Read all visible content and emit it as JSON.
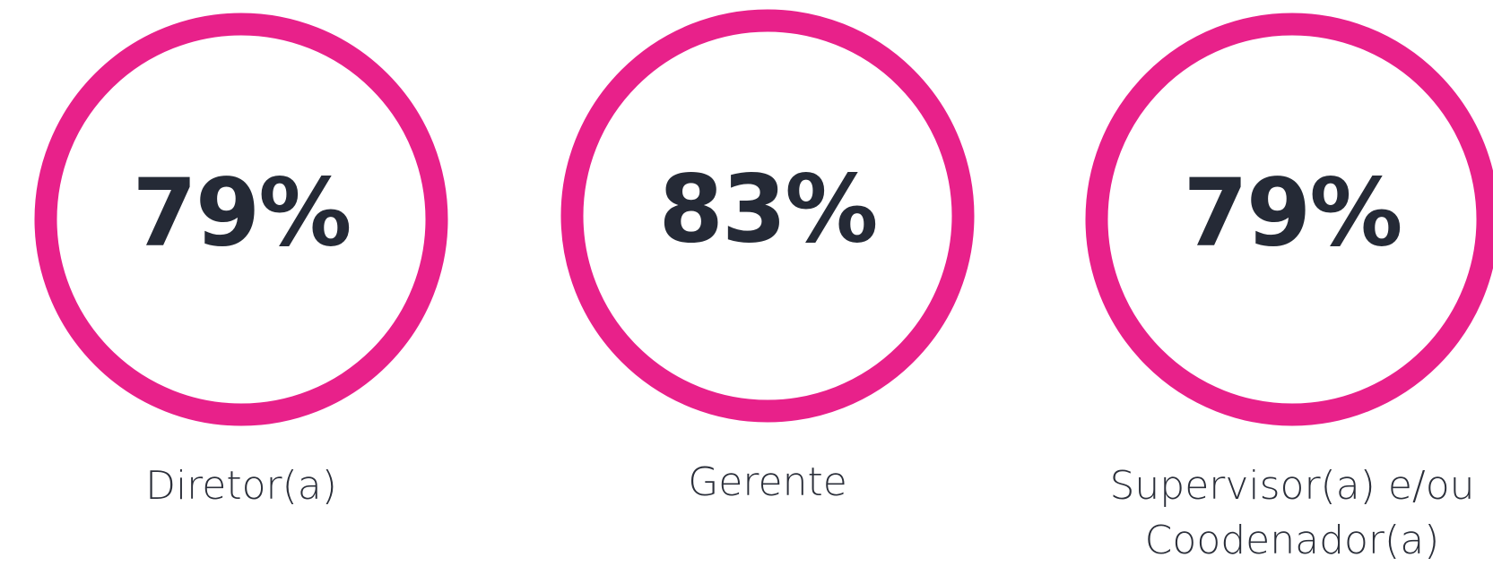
{
  "items": [
    {
      "value": "79%",
      "label_lines": [
        "Diretor(a)"
      ]
    },
    {
      "value": "83%",
      "label_lines": [
        "Gerente"
      ]
    },
    {
      "value": "79%",
      "label_lines": [
        "Supervisor(a) e/ou",
        "Coodenador(a)"
      ]
    }
  ]
}
